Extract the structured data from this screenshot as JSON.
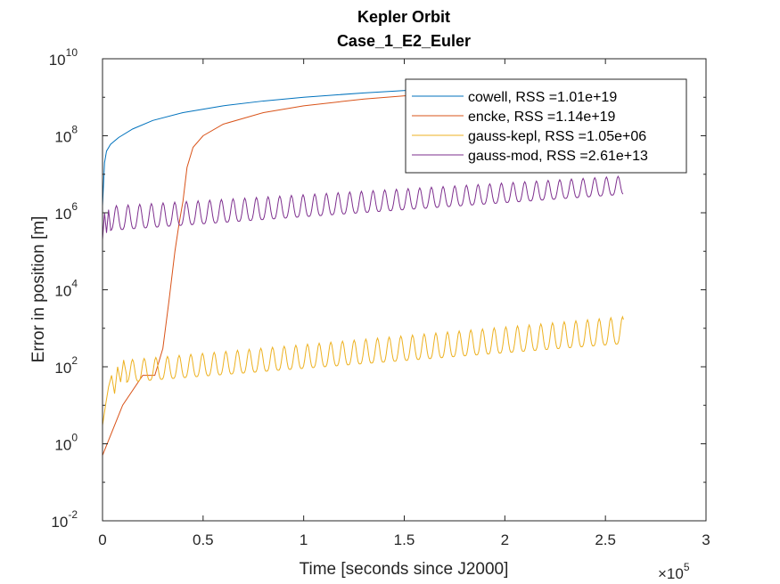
{
  "chart_data": {
    "type": "line",
    "title": "Kepler Orbit",
    "subtitle": "Case_1_E2_Euler",
    "xlabel": "Time [seconds since J2000]",
    "ylabel": "Error in position [m]",
    "x_exponent_label": "×10",
    "x_exponent_power": "5",
    "x_scale_factor": 100000,
    "xlim": [
      0,
      300000
    ],
    "ylim": [
      0.01,
      10000000000
    ],
    "yscale": "log",
    "grid": false,
    "legend_position": "top-right",
    "x_ticks": [
      {
        "value": 0,
        "label": "0"
      },
      {
        "value": 50000,
        "label": "0.5"
      },
      {
        "value": 100000,
        "label": "1"
      },
      {
        "value": 150000,
        "label": "1.5"
      },
      {
        "value": 200000,
        "label": "2"
      },
      {
        "value": 250000,
        "label": "2.5"
      },
      {
        "value": 300000,
        "label": "3"
      }
    ],
    "y_ticks": [
      {
        "value": 0.01,
        "base": "10",
        "exp": "-2"
      },
      {
        "value": 1,
        "base": "10",
        "exp": "0"
      },
      {
        "value": 100,
        "base": "10",
        "exp": "2"
      },
      {
        "value": 10000,
        "base": "10",
        "exp": "4"
      },
      {
        "value": 1000000,
        "base": "10",
        "exp": "6"
      },
      {
        "value": 100000000,
        "base": "10",
        "exp": "8"
      },
      {
        "value": 10000000000,
        "base": "10",
        "exp": "10"
      }
    ],
    "series": [
      {
        "name": "cowell, RSS =1.01e+19",
        "color": "#0072bd",
        "x": [
          0,
          1000,
          2000,
          4000,
          8000,
          15000,
          25000,
          40000,
          60000,
          80000,
          100000,
          130000,
          160000,
          190000,
          220000,
          250000,
          259000
        ],
        "y": [
          1500000,
          20000000,
          40000000,
          60000000,
          90000000,
          150000000,
          250000000,
          400000000,
          600000000,
          800000000,
          1000000000,
          1300000000,
          1600000000,
          1900000000,
          2200000000,
          2500000000,
          2600000000
        ]
      },
      {
        "name": "encke, RSS =1.14e+19",
        "color": "#d95319",
        "x": [
          0,
          10000,
          20000,
          26000,
          30000,
          33000,
          36000,
          38000,
          40000,
          42000,
          45000,
          50000,
          60000,
          80000,
          100000,
          130000,
          160000,
          190000,
          220000,
          250000,
          259000
        ],
        "y": [
          0.5,
          10,
          60,
          60,
          300,
          5000,
          100000,
          500000,
          2000000,
          15000000,
          50000000,
          100000000,
          200000000,
          400000000,
          600000000,
          900000000,
          1200000000,
          1500000000,
          1800000000,
          2100000000,
          2300000000
        ]
      },
      {
        "name": "gauss-kepl, RSS =1.05e+06",
        "color": "#edb120",
        "x": [
          0,
          1500,
          3000,
          4500,
          6000,
          7500,
          9000,
          10500,
          12000
        ],
        "y": [
          3,
          10,
          30,
          60,
          20,
          100,
          40,
          150,
          60
        ],
        "periodic": {
          "period": 5800,
          "low_start": 40,
          "low_end": 400,
          "high_start": 150,
          "high_end": 2000,
          "start": 12000,
          "end": 259000
        }
      },
      {
        "name": "gauss-mod, RSS =2.61e+13",
        "color": "#7e2f8e",
        "x": [
          0,
          1000,
          2000,
          3000,
          4000
        ],
        "y": [
          200000,
          1000000,
          300000,
          1200000,
          400000
        ],
        "periodic": {
          "period": 5800,
          "low_start": 350000,
          "low_end": 3000000,
          "high_start": 1500000,
          "high_end": 9000000,
          "start": 4000,
          "end": 259000
        }
      }
    ]
  }
}
